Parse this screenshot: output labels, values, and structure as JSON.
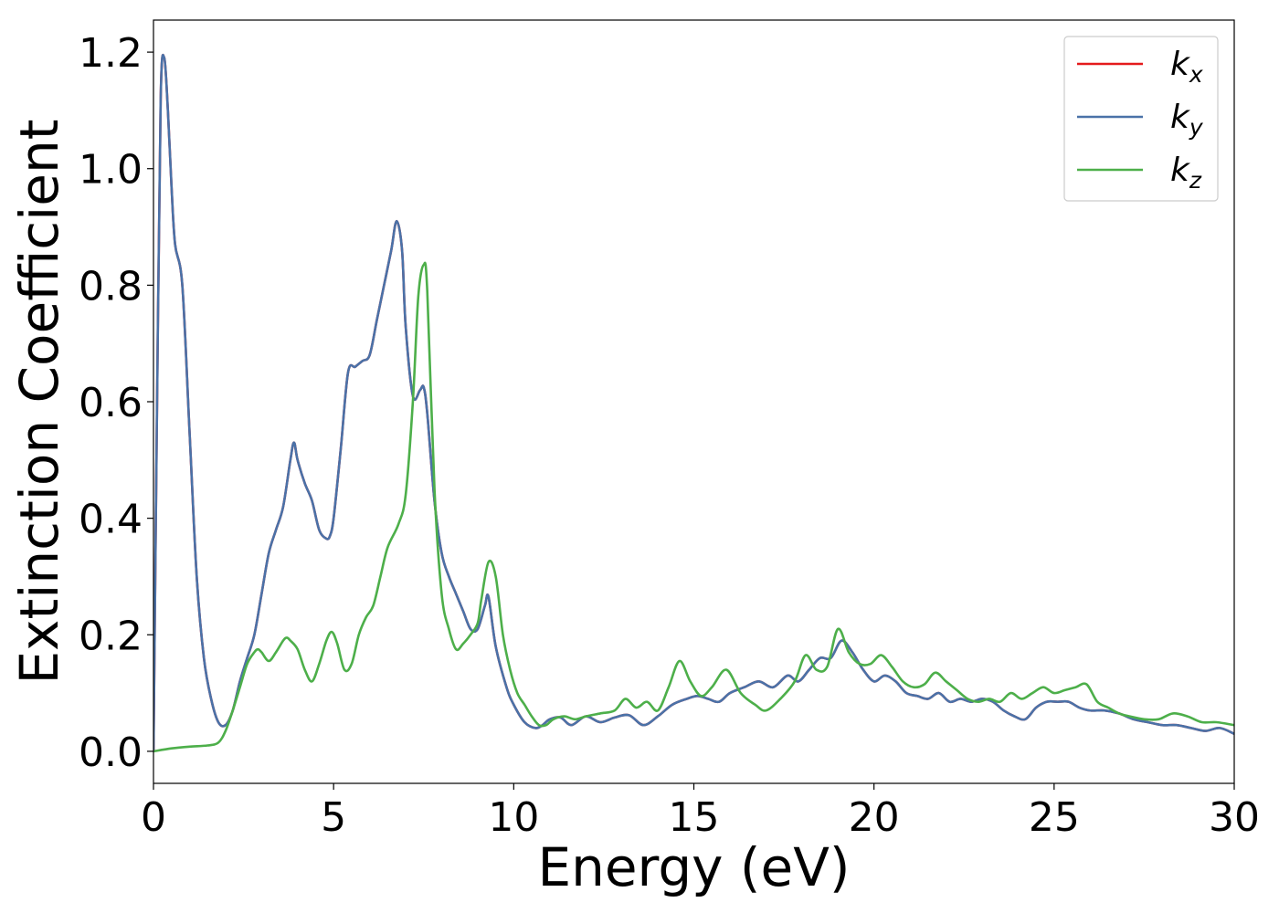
{
  "chart_data": {
    "type": "line",
    "title": "",
    "xlabel": "Energy (eV)",
    "ylabel": "Extinction Coefficient",
    "xlim": [
      0,
      30
    ],
    "ylim": [
      -0.055,
      1.255
    ],
    "xticks": [
      0,
      5,
      10,
      15,
      20,
      25,
      30
    ],
    "yticks": [
      0.0,
      0.2,
      0.4,
      0.6,
      0.8,
      1.0,
      1.2
    ],
    "xtick_labels": [
      "0",
      "5",
      "10",
      "15",
      "20",
      "25",
      "30"
    ],
    "ytick_labels": [
      "0.0",
      "0.2",
      "0.4",
      "0.6",
      "0.8",
      "1.0",
      "1.2"
    ],
    "grid": false,
    "legend_position": "top-right",
    "series": [
      {
        "name": "k_x",
        "legend_base": "k",
        "legend_sub": "x",
        "color": "#e41a1c",
        "x": [
          0,
          0.1,
          0.2,
          0.3,
          0.4,
          0.5,
          0.6,
          0.8,
          1.0,
          1.2,
          1.4,
          1.6,
          1.8,
          2.0,
          2.2,
          2.4,
          2.6,
          2.8,
          3.0,
          3.2,
          3.4,
          3.6,
          3.8,
          3.9,
          4.0,
          4.2,
          4.4,
          4.6,
          4.8,
          4.9,
          5.0,
          5.2,
          5.4,
          5.6,
          5.8,
          6.0,
          6.2,
          6.4,
          6.6,
          6.75,
          6.9,
          7.0,
          7.2,
          7.4,
          7.5,
          7.6,
          7.8,
          8.0,
          8.2,
          8.4,
          8.6,
          8.8,
          9.0,
          9.2,
          9.3,
          9.5,
          9.8,
          10.0,
          10.3,
          10.6,
          10.8,
          11.0,
          11.3,
          11.6,
          12.0,
          12.4,
          12.8,
          13.2,
          13.6,
          14.0,
          14.4,
          14.8,
          15.1,
          15.4,
          15.7,
          16.0,
          16.4,
          16.8,
          17.2,
          17.6,
          17.9,
          18.2,
          18.5,
          18.8,
          19.1,
          19.4,
          19.7,
          20.0,
          20.3,
          20.6,
          20.9,
          21.2,
          21.5,
          21.8,
          22.1,
          22.4,
          22.7,
          23.0,
          23.3,
          23.6,
          23.9,
          24.2,
          24.5,
          24.8,
          25.1,
          25.4,
          25.7,
          26.0,
          26.4,
          26.8,
          27.2,
          27.6,
          28.0,
          28.4,
          28.8,
          29.2,
          29.6,
          30.0
        ],
        "y": [
          0.0,
          0.6,
          1.12,
          1.19,
          1.1,
          0.97,
          0.87,
          0.8,
          0.55,
          0.3,
          0.16,
          0.09,
          0.05,
          0.045,
          0.07,
          0.12,
          0.16,
          0.2,
          0.27,
          0.34,
          0.38,
          0.42,
          0.5,
          0.53,
          0.5,
          0.46,
          0.43,
          0.38,
          0.365,
          0.37,
          0.4,
          0.52,
          0.65,
          0.66,
          0.67,
          0.68,
          0.74,
          0.8,
          0.86,
          0.91,
          0.86,
          0.73,
          0.61,
          0.62,
          0.625,
          0.58,
          0.43,
          0.34,
          0.3,
          0.27,
          0.24,
          0.21,
          0.21,
          0.25,
          0.265,
          0.18,
          0.11,
          0.08,
          0.05,
          0.04,
          0.045,
          0.055,
          0.058,
          0.045,
          0.06,
          0.05,
          0.058,
          0.062,
          0.045,
          0.06,
          0.08,
          0.09,
          0.095,
          0.09,
          0.085,
          0.1,
          0.11,
          0.12,
          0.11,
          0.13,
          0.12,
          0.14,
          0.16,
          0.16,
          0.19,
          0.17,
          0.14,
          0.12,
          0.13,
          0.12,
          0.1,
          0.095,
          0.09,
          0.1,
          0.085,
          0.09,
          0.085,
          0.09,
          0.085,
          0.07,
          0.06,
          0.055,
          0.075,
          0.085,
          0.085,
          0.085,
          0.075,
          0.07,
          0.07,
          0.065,
          0.055,
          0.05,
          0.045,
          0.045,
          0.04,
          0.035,
          0.04,
          0.03
        ]
      },
      {
        "name": "k_y",
        "legend_base": "k",
        "legend_sub": "y",
        "color": "#4a72a8",
        "x": [
          0,
          0.1,
          0.2,
          0.3,
          0.4,
          0.5,
          0.6,
          0.8,
          1.0,
          1.2,
          1.4,
          1.6,
          1.8,
          2.0,
          2.2,
          2.4,
          2.6,
          2.8,
          3.0,
          3.2,
          3.4,
          3.6,
          3.8,
          3.9,
          4.0,
          4.2,
          4.4,
          4.6,
          4.8,
          4.9,
          5.0,
          5.2,
          5.4,
          5.6,
          5.8,
          6.0,
          6.2,
          6.4,
          6.6,
          6.75,
          6.9,
          7.0,
          7.2,
          7.4,
          7.5,
          7.6,
          7.8,
          8.0,
          8.2,
          8.4,
          8.6,
          8.8,
          9.0,
          9.2,
          9.3,
          9.5,
          9.8,
          10.0,
          10.3,
          10.6,
          10.8,
          11.0,
          11.3,
          11.6,
          12.0,
          12.4,
          12.8,
          13.2,
          13.6,
          14.0,
          14.4,
          14.8,
          15.1,
          15.4,
          15.7,
          16.0,
          16.4,
          16.8,
          17.2,
          17.6,
          17.9,
          18.2,
          18.5,
          18.8,
          19.1,
          19.4,
          19.7,
          20.0,
          20.3,
          20.6,
          20.9,
          21.2,
          21.5,
          21.8,
          22.1,
          22.4,
          22.7,
          23.0,
          23.3,
          23.6,
          23.9,
          24.2,
          24.5,
          24.8,
          25.1,
          25.4,
          25.7,
          26.0,
          26.4,
          26.8,
          27.2,
          27.6,
          28.0,
          28.4,
          28.8,
          29.2,
          29.6,
          30.0
        ],
        "y": [
          0.0,
          0.6,
          1.12,
          1.19,
          1.1,
          0.97,
          0.87,
          0.8,
          0.55,
          0.3,
          0.16,
          0.09,
          0.05,
          0.045,
          0.07,
          0.12,
          0.16,
          0.2,
          0.27,
          0.34,
          0.38,
          0.42,
          0.5,
          0.53,
          0.5,
          0.46,
          0.43,
          0.38,
          0.365,
          0.37,
          0.4,
          0.52,
          0.65,
          0.66,
          0.67,
          0.68,
          0.74,
          0.8,
          0.86,
          0.91,
          0.86,
          0.73,
          0.61,
          0.62,
          0.625,
          0.58,
          0.43,
          0.34,
          0.3,
          0.27,
          0.24,
          0.21,
          0.21,
          0.25,
          0.265,
          0.18,
          0.11,
          0.08,
          0.05,
          0.04,
          0.045,
          0.055,
          0.058,
          0.045,
          0.06,
          0.05,
          0.058,
          0.062,
          0.045,
          0.06,
          0.08,
          0.09,
          0.095,
          0.09,
          0.085,
          0.1,
          0.11,
          0.12,
          0.11,
          0.13,
          0.12,
          0.14,
          0.16,
          0.16,
          0.19,
          0.17,
          0.14,
          0.12,
          0.13,
          0.12,
          0.1,
          0.095,
          0.09,
          0.1,
          0.085,
          0.09,
          0.085,
          0.09,
          0.085,
          0.07,
          0.06,
          0.055,
          0.075,
          0.085,
          0.085,
          0.085,
          0.075,
          0.07,
          0.07,
          0.065,
          0.055,
          0.05,
          0.045,
          0.045,
          0.04,
          0.035,
          0.04,
          0.03
        ]
      },
      {
        "name": "k_z",
        "legend_base": "k",
        "legend_sub": "z",
        "color": "#4daf4a",
        "x": [
          0,
          0.5,
          1.0,
          1.5,
          1.8,
          2.0,
          2.2,
          2.4,
          2.6,
          2.8,
          2.9,
          3.0,
          3.2,
          3.4,
          3.6,
          3.7,
          3.8,
          4.0,
          4.2,
          4.4,
          4.6,
          4.8,
          4.95,
          5.1,
          5.3,
          5.5,
          5.7,
          5.9,
          6.1,
          6.3,
          6.5,
          6.8,
          7.0,
          7.2,
          7.35,
          7.5,
          7.6,
          7.8,
          8.0,
          8.2,
          8.4,
          8.6,
          8.8,
          9.0,
          9.1,
          9.3,
          9.5,
          9.7,
          9.9,
          10.1,
          10.3,
          10.5,
          10.7,
          10.9,
          11.1,
          11.4,
          11.7,
          12.0,
          12.4,
          12.8,
          13.1,
          13.4,
          13.7,
          14.0,
          14.3,
          14.6,
          14.9,
          15.2,
          15.5,
          15.9,
          16.3,
          16.7,
          17.0,
          17.4,
          17.8,
          18.1,
          18.4,
          18.7,
          19.0,
          19.3,
          19.6,
          19.9,
          20.2,
          20.5,
          20.8,
          21.1,
          21.4,
          21.7,
          22.0,
          22.3,
          22.6,
          22.9,
          23.2,
          23.5,
          23.8,
          24.1,
          24.4,
          24.7,
          25.0,
          25.3,
          25.6,
          25.9,
          26.2,
          26.5,
          26.8,
          27.1,
          27.5,
          27.9,
          28.3,
          28.7,
          29.1,
          29.5,
          30.0
        ],
        "y": [
          0.0,
          0.005,
          0.008,
          0.01,
          0.015,
          0.035,
          0.07,
          0.11,
          0.15,
          0.17,
          0.175,
          0.17,
          0.155,
          0.17,
          0.19,
          0.195,
          0.19,
          0.175,
          0.14,
          0.12,
          0.15,
          0.19,
          0.205,
          0.185,
          0.14,
          0.15,
          0.2,
          0.23,
          0.25,
          0.3,
          0.35,
          0.39,
          0.44,
          0.6,
          0.78,
          0.835,
          0.79,
          0.45,
          0.27,
          0.21,
          0.175,
          0.185,
          0.2,
          0.22,
          0.26,
          0.325,
          0.3,
          0.2,
          0.14,
          0.1,
          0.08,
          0.06,
          0.045,
          0.045,
          0.055,
          0.06,
          0.055,
          0.06,
          0.065,
          0.07,
          0.09,
          0.075,
          0.085,
          0.07,
          0.11,
          0.155,
          0.12,
          0.095,
          0.11,
          0.14,
          0.1,
          0.08,
          0.07,
          0.09,
          0.12,
          0.165,
          0.14,
          0.145,
          0.21,
          0.17,
          0.15,
          0.15,
          0.165,
          0.145,
          0.12,
          0.11,
          0.115,
          0.135,
          0.12,
          0.105,
          0.09,
          0.085,
          0.09,
          0.085,
          0.1,
          0.09,
          0.1,
          0.11,
          0.1,
          0.105,
          0.11,
          0.115,
          0.085,
          0.075,
          0.065,
          0.06,
          0.055,
          0.055,
          0.065,
          0.06,
          0.05,
          0.05,
          0.045
        ]
      }
    ]
  }
}
